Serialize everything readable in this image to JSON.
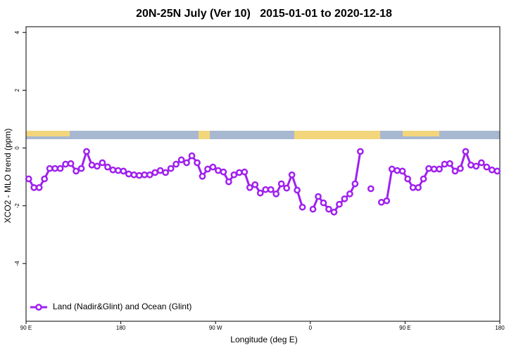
{
  "chart_data": {
    "type": "line",
    "title": "20N-25N July (Ver 10)   2015-01-01 to 2020-12-18",
    "xlabel": "Longitude (deg E)",
    "ylabel": "XCO2 - MLO trend (ppm)",
    "x": [
      92.5,
      97.5,
      102.5,
      107.5,
      112.5,
      117.5,
      122.5,
      127.5,
      132.5,
      137.5,
      142.5,
      147.5,
      152.5,
      157.5,
      162.5,
      167.5,
      172.5,
      177.5,
      182.5,
      187.5,
      192.5,
      197.5,
      202.5,
      207.5,
      212.5,
      217.5,
      222.5,
      227.5,
      232.5,
      237.5,
      242.5,
      247.5,
      252.5,
      257.5,
      262.5,
      267.5,
      272.5,
      277.5,
      282.5,
      287.5,
      292.5,
      297.5,
      302.5,
      307.5,
      312.5,
      317.5,
      322.5,
      327.5,
      332.5,
      337.5,
      342.5,
      347.5,
      352.5,
      357.5,
      362.5,
      367.5,
      372.5,
      377.5,
      382.5,
      387.5,
      392.5,
      397.5,
      402.5,
      407.5,
      412.5,
      417.5,
      422.5,
      427.5,
      432.5,
      437.5,
      442.5,
      447.5,
      452.5,
      457.5,
      462.5,
      467.5,
      472.5,
      477.5,
      482.5,
      487.5,
      492.5,
      497.5,
      502.5,
      507.5,
      512.5,
      517.5,
      522.5,
      527.5,
      532.5,
      537.5
    ],
    "series": [
      {
        "name": "Land (Nadir&Glint) and Ocean (Glint)",
        "color": "#a020f0",
        "values": [
          -1.07,
          -1.37,
          -1.37,
          -1.07,
          -0.71,
          -0.71,
          -0.71,
          -0.56,
          -0.54,
          -0.8,
          -0.71,
          -0.12,
          -0.59,
          -0.63,
          -0.51,
          -0.66,
          -0.76,
          -0.78,
          -0.8,
          -0.9,
          -0.93,
          -0.95,
          -0.93,
          -0.93,
          -0.85,
          -0.78,
          -0.85,
          -0.71,
          -0.56,
          -0.41,
          -0.51,
          -0.27,
          -0.51,
          -0.98,
          -0.73,
          -0.66,
          -0.78,
          -0.83,
          -1.17,
          -0.93,
          -0.85,
          -0.83,
          -1.37,
          -1.27,
          -1.56,
          -1.44,
          -1.44,
          -1.59,
          -1.24,
          -1.39,
          -0.93,
          -1.46,
          -2.05,
          null,
          -2.12,
          -1.68,
          -1.9,
          -2.12,
          -2.22,
          -1.95,
          -1.76,
          -1.59,
          -1.24,
          -0.12,
          null,
          -1.41,
          null,
          -1.88,
          -1.83,
          -0.73,
          -0.78,
          -0.8,
          -1.07,
          -1.37,
          -1.37,
          -1.07,
          -0.71,
          -0.73,
          -0.73,
          -0.56,
          -0.54,
          -0.8,
          -0.71,
          -0.12,
          -0.59,
          -0.63,
          -0.51,
          -0.66,
          -0.76,
          -0.8
        ]
      }
    ],
    "xlim": [
      90,
      540
    ],
    "xticks": [
      {
        "value": 90,
        "label": "90 E"
      },
      {
        "value": 180,
        "label": "180"
      },
      {
        "value": 270,
        "label": "90 W"
      },
      {
        "value": 360,
        "label": "0"
      },
      {
        "value": 450,
        "label": "90 E"
      },
      {
        "value": 540,
        "label": "180"
      }
    ],
    "ylim": [
      -6,
      4.2
    ],
    "yticks": [
      4,
      2,
      0,
      -2,
      -4
    ],
    "legend": "bottom-left"
  }
}
